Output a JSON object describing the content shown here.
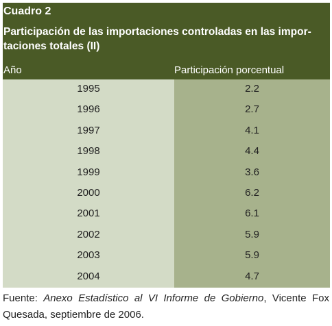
{
  "table": {
    "label": "Cuadro 2",
    "title": "Participación de las importaciones controladas en las importaciones totales (II)",
    "title_line1": "Participación de las importaciones controladas en las impor-",
    "title_line2": "taciones totales (II)",
    "col_year": "Año",
    "col_pct": "Participación porcentual",
    "rows": [
      {
        "year": "1995",
        "pct": "2.2"
      },
      {
        "year": "1996",
        "pct": "2.7"
      },
      {
        "year": "1997",
        "pct": "4.1"
      },
      {
        "year": "1998",
        "pct": "4.4"
      },
      {
        "year": "1999",
        "pct": "3.6"
      },
      {
        "year": "2000",
        "pct": "6.2"
      },
      {
        "year": "2001",
        "pct": "6.1"
      },
      {
        "year": "2002",
        "pct": "5.9"
      },
      {
        "year": "2003",
        "pct": "5.9"
      },
      {
        "year": "2004",
        "pct": "4.7"
      }
    ],
    "colors": {
      "header_bg": "#4a5a26",
      "col_year_bg": "#d3dbc6",
      "col_pct_bg": "#a7b28c"
    }
  },
  "footer": {
    "prefix": "Fuente: ",
    "source_italic": "Anexo Estadístico al VI Informe de Gobierno",
    "suffix": ", Vicente Fox Quesada, septiembre de 2006."
  }
}
